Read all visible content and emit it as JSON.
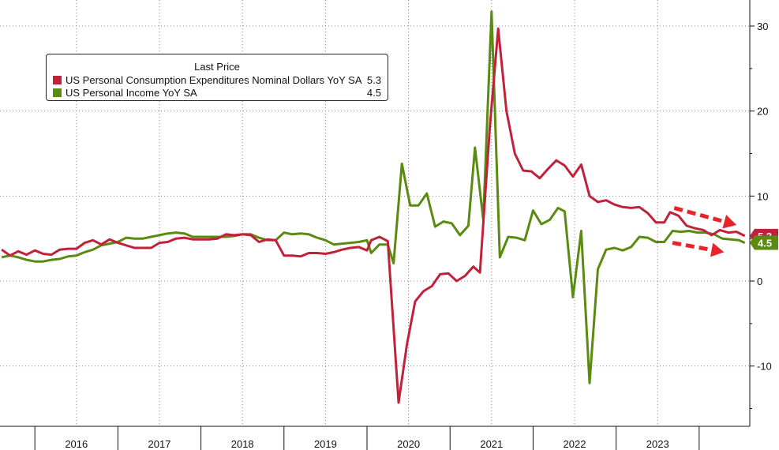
{
  "chart_data": {
    "type": "line",
    "legend": {
      "title": "Last Price",
      "placement": "top-left"
    },
    "y_axis": {
      "position": "right",
      "ticks": [
        30,
        20,
        10,
        0,
        -10
      ],
      "tick_labels": [
        "30",
        "20",
        "10",
        "0",
        "-10"
      ],
      "range": [
        -17,
        33
      ]
    },
    "x_axis": {
      "labels": [
        "2016",
        "2017",
        "2018",
        "2019",
        "2020",
        "2021",
        "2022",
        "2023"
      ]
    },
    "grid": true,
    "series": [
      {
        "name": "US Personal Consumption Expenditures Nominal Dollars YoY SA",
        "last_label": "5.3",
        "last_value": 5.3,
        "color": "#c0223b",
        "points": [
          [
            2015.6,
            3.7
          ],
          [
            2015.7,
            3.0
          ],
          [
            2015.8,
            3.5
          ],
          [
            2015.9,
            3.1
          ],
          [
            2016.0,
            3.6
          ],
          [
            2016.1,
            3.2
          ],
          [
            2016.2,
            3.1
          ],
          [
            2016.3,
            3.7
          ],
          [
            2016.4,
            3.8
          ],
          [
            2016.5,
            3.8
          ],
          [
            2016.6,
            4.5
          ],
          [
            2016.7,
            4.8
          ],
          [
            2016.8,
            4.3
          ],
          [
            2016.9,
            4.9
          ],
          [
            2017.0,
            4.5
          ],
          [
            2017.1,
            4.2
          ],
          [
            2017.2,
            3.9
          ],
          [
            2017.3,
            3.9
          ],
          [
            2017.4,
            3.9
          ],
          [
            2017.5,
            4.5
          ],
          [
            2017.6,
            4.6
          ],
          [
            2017.7,
            5.0
          ],
          [
            2017.8,
            5.1
          ],
          [
            2017.9,
            4.9
          ],
          [
            2018.0,
            4.9
          ],
          [
            2018.1,
            4.9
          ],
          [
            2018.2,
            5.0
          ],
          [
            2018.3,
            5.5
          ],
          [
            2018.4,
            5.4
          ],
          [
            2018.5,
            5.5
          ],
          [
            2018.6,
            5.4
          ],
          [
            2018.7,
            4.6
          ],
          [
            2018.8,
            4.9
          ],
          [
            2018.9,
            4.8
          ],
          [
            2019.0,
            3.0
          ],
          [
            2019.1,
            3.0
          ],
          [
            2019.2,
            2.9
          ],
          [
            2019.3,
            3.3
          ],
          [
            2019.4,
            3.3
          ],
          [
            2019.5,
            3.2
          ],
          [
            2019.6,
            3.4
          ],
          [
            2019.7,
            3.7
          ],
          [
            2019.8,
            3.9
          ],
          [
            2019.9,
            4.0
          ],
          [
            2020.0,
            3.6
          ],
          [
            2020.05,
            4.8
          ],
          [
            2020.15,
            5.2
          ],
          [
            2020.25,
            4.7
          ],
          [
            2020.38,
            -14.3
          ],
          [
            2020.48,
            -7.5
          ],
          [
            2020.58,
            -2.4
          ],
          [
            2020.68,
            -1.2
          ],
          [
            2020.78,
            -0.6
          ],
          [
            2020.88,
            0.8
          ],
          [
            2020.98,
            0.9
          ],
          [
            2021.08,
            0.0
          ],
          [
            2021.18,
            0.6
          ],
          [
            2021.28,
            1.7
          ],
          [
            2021.36,
            1.0
          ],
          [
            2021.48,
            18.2
          ],
          [
            2021.58,
            29.7
          ],
          [
            2021.68,
            20.0
          ],
          [
            2021.78,
            15.0
          ],
          [
            2021.88,
            13.0
          ],
          [
            2021.98,
            12.9
          ],
          [
            2022.08,
            12.1
          ],
          [
            2022.18,
            13.2
          ],
          [
            2022.28,
            14.2
          ],
          [
            2022.38,
            13.6
          ],
          [
            2022.48,
            12.3
          ],
          [
            2022.58,
            13.7
          ],
          [
            2022.68,
            10.0
          ],
          [
            2022.78,
            9.3
          ],
          [
            2022.88,
            9.5
          ],
          [
            2022.98,
            9.0
          ],
          [
            2023.08,
            8.7
          ],
          [
            2023.18,
            8.6
          ],
          [
            2023.28,
            8.7
          ],
          [
            2023.38,
            8.0
          ],
          [
            2023.48,
            6.9
          ],
          [
            2023.58,
            6.9
          ],
          [
            2023.65,
            8.1
          ],
          [
            2023.75,
            7.7
          ],
          [
            2023.85,
            6.5
          ],
          [
            2023.95,
            6.2
          ],
          [
            2024.05,
            6.0
          ],
          [
            2024.15,
            5.4
          ],
          [
            2024.25,
            6.0
          ],
          [
            2024.35,
            5.7
          ],
          [
            2024.45,
            5.8
          ],
          [
            2024.55,
            5.3
          ]
        ]
      },
      {
        "name": "US Personal Income YoY SA",
        "last_label": "4.5",
        "last_value": 4.5,
        "color": "#5a8a10",
        "points": [
          [
            2015.6,
            2.8
          ],
          [
            2015.7,
            3.0
          ],
          [
            2015.8,
            2.8
          ],
          [
            2015.9,
            2.5
          ],
          [
            2016.0,
            2.3
          ],
          [
            2016.1,
            2.3
          ],
          [
            2016.2,
            2.5
          ],
          [
            2016.3,
            2.6
          ],
          [
            2016.4,
            2.9
          ],
          [
            2016.5,
            3.0
          ],
          [
            2016.6,
            3.4
          ],
          [
            2016.7,
            3.7
          ],
          [
            2016.8,
            4.2
          ],
          [
            2016.9,
            4.4
          ],
          [
            2017.0,
            4.6
          ],
          [
            2017.1,
            5.1
          ],
          [
            2017.2,
            5.0
          ],
          [
            2017.3,
            5.0
          ],
          [
            2017.4,
            5.2
          ],
          [
            2017.5,
            5.4
          ],
          [
            2017.6,
            5.6
          ],
          [
            2017.7,
            5.7
          ],
          [
            2017.8,
            5.6
          ],
          [
            2017.9,
            5.2
          ],
          [
            2018.0,
            5.2
          ],
          [
            2018.1,
            5.2
          ],
          [
            2018.2,
            5.2
          ],
          [
            2018.3,
            5.2
          ],
          [
            2018.4,
            5.3
          ],
          [
            2018.5,
            5.5
          ],
          [
            2018.6,
            5.5
          ],
          [
            2018.7,
            5.1
          ],
          [
            2018.8,
            4.8
          ],
          [
            2018.9,
            4.8
          ],
          [
            2019.0,
            5.7
          ],
          [
            2019.1,
            5.5
          ],
          [
            2019.2,
            5.6
          ],
          [
            2019.3,
            5.5
          ],
          [
            2019.4,
            5.1
          ],
          [
            2019.5,
            4.8
          ],
          [
            2019.6,
            4.3
          ],
          [
            2019.7,
            4.4
          ],
          [
            2019.8,
            4.5
          ],
          [
            2019.9,
            4.6
          ],
          [
            2020.0,
            4.8
          ],
          [
            2020.05,
            3.3
          ],
          [
            2020.15,
            4.3
          ],
          [
            2020.25,
            4.3
          ],
          [
            2020.32,
            2.1
          ],
          [
            2020.42,
            13.8
          ],
          [
            2020.52,
            8.9
          ],
          [
            2020.62,
            8.9
          ],
          [
            2020.72,
            10.3
          ],
          [
            2020.82,
            6.4
          ],
          [
            2020.92,
            7.0
          ],
          [
            2021.02,
            6.8
          ],
          [
            2021.12,
            5.4
          ],
          [
            2021.22,
            6.5
          ],
          [
            2021.3,
            15.7
          ],
          [
            2021.4,
            7.2
          ],
          [
            2021.5,
            31.7
          ],
          [
            2021.6,
            2.8
          ],
          [
            2021.7,
            5.2
          ],
          [
            2021.8,
            5.1
          ],
          [
            2021.9,
            4.8
          ],
          [
            2022.0,
            8.3
          ],
          [
            2022.1,
            6.7
          ],
          [
            2022.2,
            7.2
          ],
          [
            2022.3,
            8.6
          ],
          [
            2022.38,
            8.2
          ],
          [
            2022.48,
            -1.9
          ],
          [
            2022.58,
            5.9
          ],
          [
            2022.68,
            -12.0
          ],
          [
            2022.78,
            1.4
          ],
          [
            2022.88,
            3.7
          ],
          [
            2022.98,
            3.9
          ],
          [
            2023.08,
            3.6
          ],
          [
            2023.18,
            4.0
          ],
          [
            2023.28,
            5.2
          ],
          [
            2023.38,
            5.1
          ],
          [
            2023.48,
            4.6
          ],
          [
            2023.58,
            4.6
          ],
          [
            2023.68,
            5.9
          ],
          [
            2023.78,
            5.8
          ],
          [
            2023.88,
            5.9
          ],
          [
            2023.98,
            5.7
          ],
          [
            2024.08,
            5.7
          ],
          [
            2024.18,
            5.5
          ],
          [
            2024.28,
            5.0
          ],
          [
            2024.38,
            4.9
          ],
          [
            2024.48,
            4.8
          ],
          [
            2024.55,
            4.5
          ]
        ]
      }
    ],
    "annotations": [
      {
        "type": "arrow",
        "color": "#e8242a",
        "from": [
          2023.7,
          8.6
        ],
        "to": [
          2024.45,
          6.6
        ]
      },
      {
        "type": "arrow",
        "color": "#e8242a",
        "from": [
          2023.68,
          4.5
        ],
        "to": [
          2024.3,
          3.4
        ]
      }
    ]
  }
}
